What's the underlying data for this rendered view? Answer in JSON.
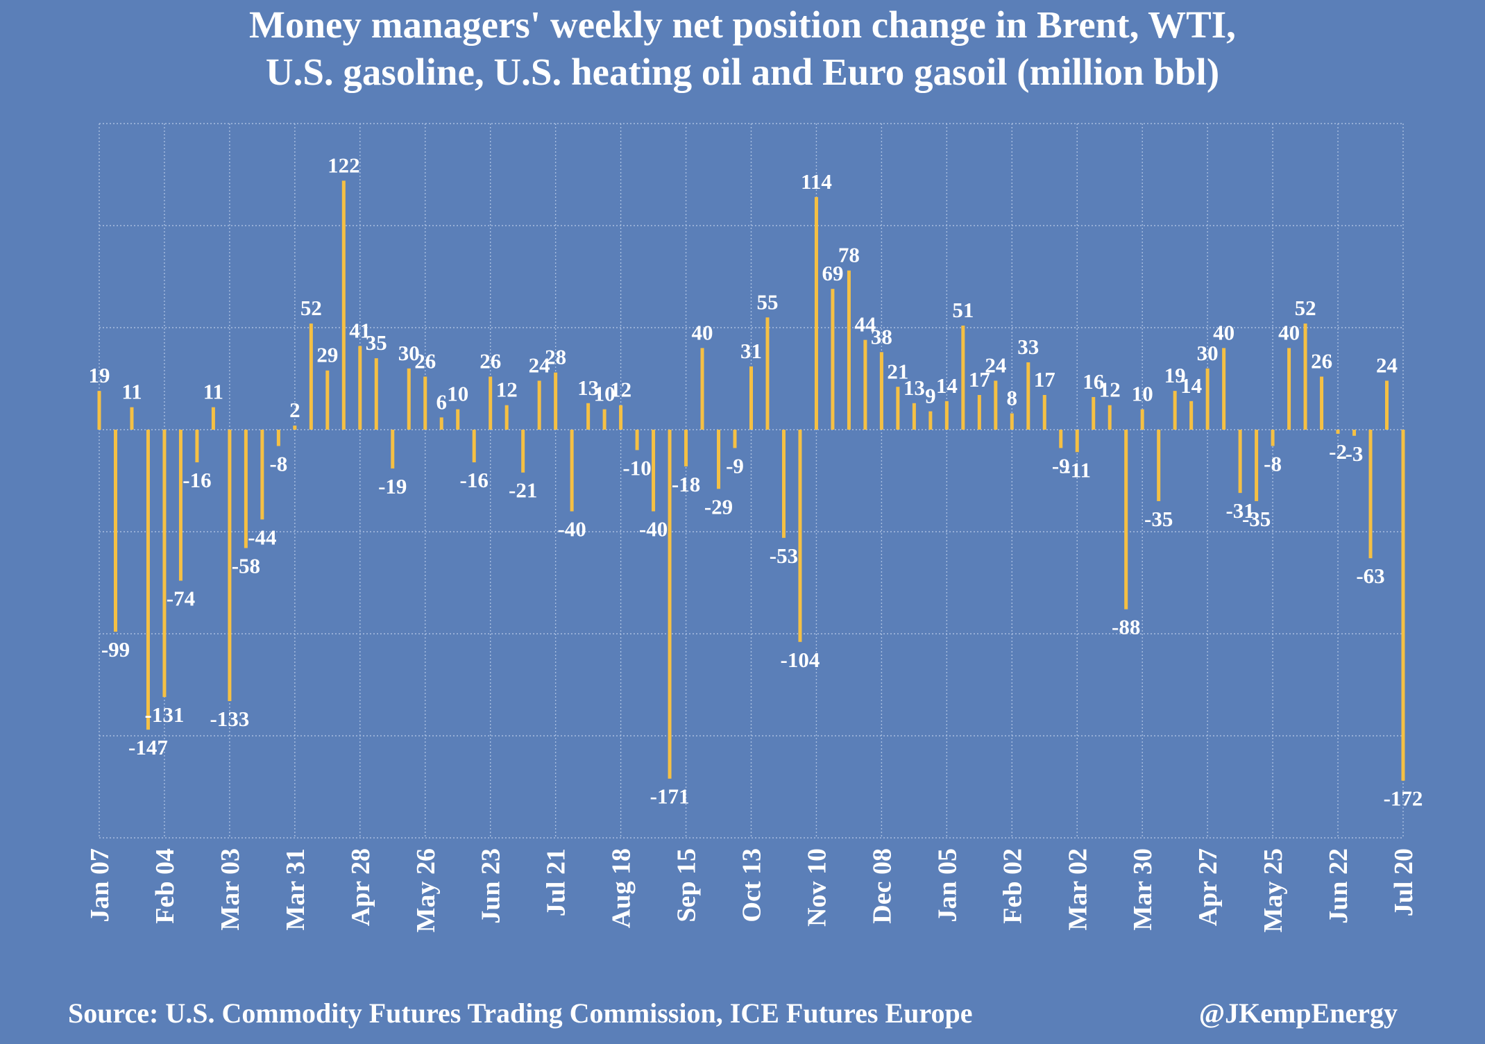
{
  "chart_data": {
    "type": "bar",
    "title": "Money managers' weekly net position change in Brent, WTI, U.S. gasoline, U.S. heating oil and Euro gasoil (million bbl)",
    "title_lines": [
      "Money managers' weekly net position change in Brent, WTI,",
      "U.S. gasoline, U.S. heating oil and Euro gasoil (million bbl)"
    ],
    "xlabel": "",
    "ylabel": "",
    "ylim": [
      -200,
      150
    ],
    "grid": true,
    "legend": "none",
    "colors": {
      "background": "#5b7fb8",
      "bar": "#f5c044",
      "grid": "#a9bedf",
      "text": "#ffffff"
    },
    "x_tick_labels": [
      "Jan 07",
      "Feb 04",
      "Mar 03",
      "Mar 31",
      "Apr 28",
      "May 26",
      "Jun 23",
      "Jul 21",
      "Aug 18",
      "Sep 15",
      "Oct 13",
      "Nov 10",
      "Dec 08",
      "Jan 05",
      "Feb 02",
      "Mar 02",
      "Mar 30",
      "Apr 27",
      "May 25",
      "Jun 22",
      "Jul 20"
    ],
    "values": [
      19,
      -99,
      11,
      -147,
      -131,
      -74,
      -16,
      11,
      -133,
      -58,
      -44,
      -8,
      2,
      52,
      29,
      122,
      41,
      35,
      -19,
      30,
      26,
      6,
      10,
      -16,
      26,
      12,
      -21,
      24,
      28,
      -40,
      13,
      10,
      12,
      -10,
      -40,
      -171,
      -18,
      40,
      -29,
      -9,
      31,
      55,
      -53,
      -104,
      114,
      69,
      78,
      44,
      38,
      21,
      13,
      9,
      14,
      51,
      17,
      24,
      8,
      33,
      17,
      -9,
      -11,
      16,
      12,
      -88,
      10,
      -35,
      19,
      14,
      30,
      40,
      -31,
      -35,
      -8,
      40,
      52,
      26,
      -2,
      -3,
      -63,
      24,
      -172
    ]
  },
  "source": "Source: U.S. Commodity Futures Trading Commission, ICE Futures Europe",
  "handle": "@JKempEnergy"
}
